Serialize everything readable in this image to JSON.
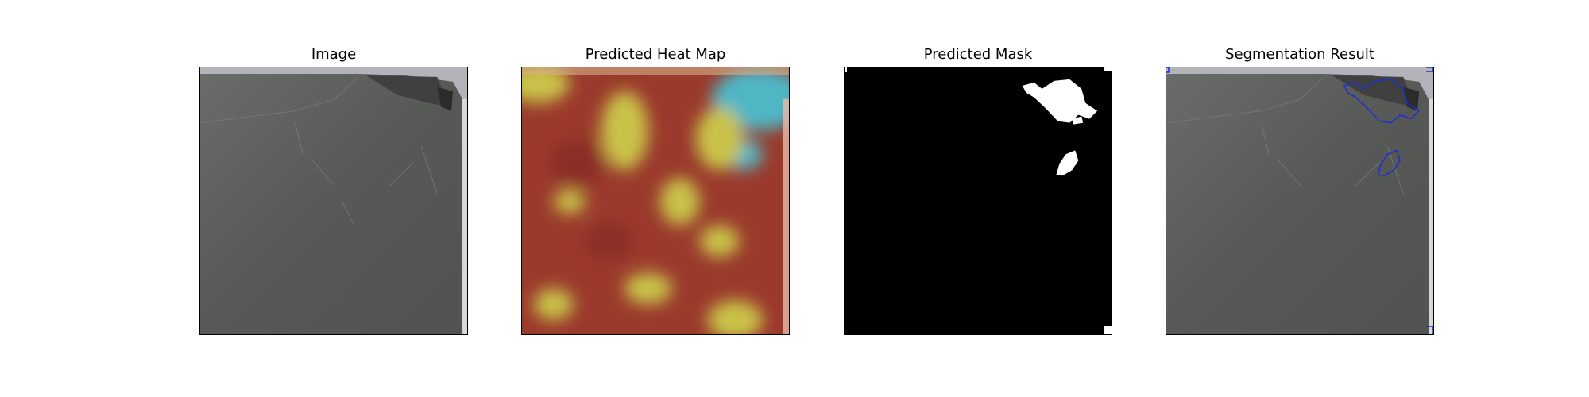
{
  "panels": [
    {
      "title": "Image"
    },
    {
      "title": "Predicted Heat Map"
    },
    {
      "title": "Predicted Mask"
    },
    {
      "title": "Segmentation Result"
    }
  ],
  "colors": {
    "surface": "#5b5d5b",
    "background_strip": "#b0b0b6",
    "heat_red": "#9e3a2a",
    "heat_yellow": "#c9c24a",
    "heat_cyan": "#4fb6c4",
    "mask_foreground": "#ffffff",
    "mask_background": "#000000",
    "contour": "#1a2fd6"
  }
}
